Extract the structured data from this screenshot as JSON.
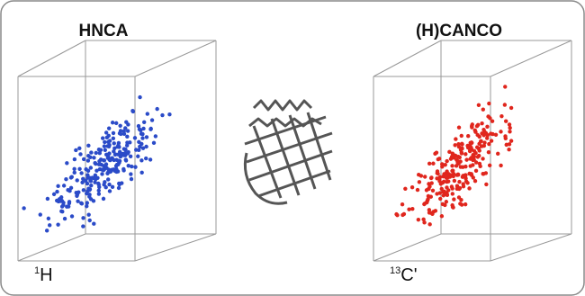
{
  "panels": [
    {
      "title": "HNCA",
      "axis_label": {
        "sup": "1",
        "text": "H"
      },
      "color": "#2b4bc8"
    },
    {
      "title": "(H)CANCO",
      "axis_label": {
        "sup": "13",
        "text": "C'"
      },
      "color": "#e0261d"
    }
  ]
}
